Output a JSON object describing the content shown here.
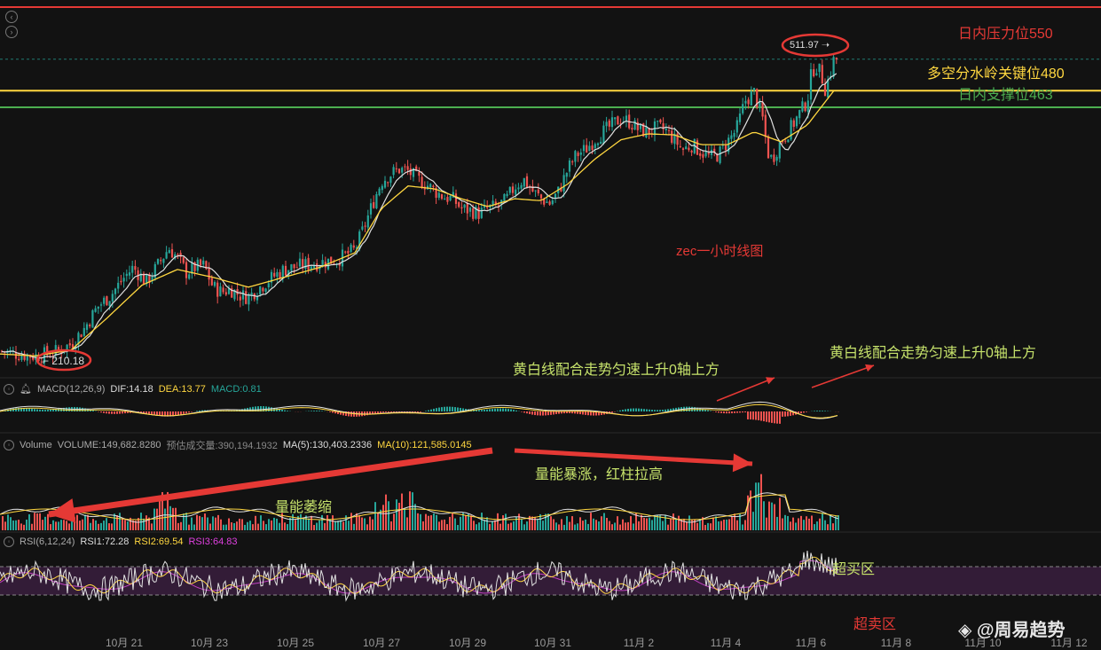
{
  "chart_data": {
    "type": "candlestick",
    "title": "zec一小时线图",
    "x_dates": [
      "10月 21",
      "10月 23",
      "10月 25",
      "10月 27",
      "10月 29",
      "10月 31",
      "11月 2",
      "11月 4",
      "11月 6",
      "11月 8",
      "11月 10",
      "11月 12"
    ],
    "price_path": [
      [
        0,
        215
      ],
      [
        20,
        212
      ],
      [
        40,
        210
      ],
      [
        60,
        213
      ],
      [
        80,
        222
      ],
      [
        95,
        238
      ],
      [
        110,
        260
      ],
      [
        125,
        272
      ],
      [
        140,
        290
      ],
      [
        150,
        300
      ],
      [
        165,
        285
      ],
      [
        180,
        305
      ],
      [
        190,
        320
      ],
      [
        200,
        310
      ],
      [
        210,
        295
      ],
      [
        220,
        300
      ],
      [
        230,
        302
      ],
      [
        240,
        280
      ],
      [
        250,
        275
      ],
      [
        260,
        278
      ],
      [
        270,
        272
      ],
      [
        280,
        270
      ],
      [
        290,
        278
      ],
      [
        300,
        285
      ],
      [
        310,
        292
      ],
      [
        320,
        298
      ],
      [
        330,
        300
      ],
      [
        340,
        302
      ],
      [
        360,
        305
      ],
      [
        380,
        308
      ],
      [
        400,
        318
      ],
      [
        410,
        340
      ],
      [
        420,
        365
      ],
      [
        430,
        388
      ],
      [
        440,
        395
      ],
      [
        450,
        400
      ],
      [
        460,
        398
      ],
      [
        470,
        390
      ],
      [
        480,
        385
      ],
      [
        490,
        378
      ],
      [
        500,
        372
      ],
      [
        510,
        370
      ],
      [
        520,
        360
      ],
      [
        530,
        358
      ],
      [
        540,
        355
      ],
      [
        550,
        360
      ],
      [
        560,
        362
      ],
      [
        570,
        368
      ],
      [
        580,
        382
      ],
      [
        590,
        390
      ],
      [
        600,
        378
      ],
      [
        610,
        370
      ],
      [
        620,
        365
      ],
      [
        630,
        378
      ],
      [
        640,
        400
      ],
      [
        650,
        415
      ],
      [
        660,
        420
      ],
      [
        670,
        430
      ],
      [
        680,
        438
      ],
      [
        690,
        445
      ],
      [
        700,
        452
      ],
      [
        710,
        448
      ],
      [
        720,
        440
      ],
      [
        730,
        438
      ],
      [
        740,
        442
      ],
      [
        750,
        440
      ],
      [
        760,
        430
      ],
      [
        770,
        420
      ],
      [
        780,
        425
      ],
      [
        790,
        418
      ],
      [
        800,
        412
      ],
      [
        810,
        415
      ],
      [
        820,
        428
      ],
      [
        830,
        440
      ],
      [
        840,
        470
      ],
      [
        850,
        478
      ],
      [
        860,
        450
      ],
      [
        865,
        418
      ],
      [
        870,
        410
      ],
      [
        880,
        428
      ],
      [
        890,
        440
      ],
      [
        900,
        455
      ],
      [
        910,
        470
      ],
      [
        915,
        500
      ],
      [
        920,
        505
      ],
      [
        925,
        498
      ],
      [
        930,
        482
      ],
      [
        935,
        495
      ],
      [
        940,
        512
      ]
    ],
    "ma_slow_path": [
      [
        0,
        212
      ],
      [
        40,
        210
      ],
      [
        80,
        216
      ],
      [
        120,
        248
      ],
      [
        160,
        282
      ],
      [
        200,
        298
      ],
      [
        240,
        290
      ],
      [
        280,
        280
      ],
      [
        320,
        290
      ],
      [
        360,
        300
      ],
      [
        400,
        315
      ],
      [
        430,
        360
      ],
      [
        460,
        383
      ],
      [
        490,
        380
      ],
      [
        520,
        370
      ],
      [
        550,
        362
      ],
      [
        580,
        370
      ],
      [
        610,
        368
      ],
      [
        640,
        385
      ],
      [
        670,
        410
      ],
      [
        700,
        430
      ],
      [
        730,
        436
      ],
      [
        760,
        435
      ],
      [
        790,
        425
      ],
      [
        820,
        425
      ],
      [
        850,
        438
      ],
      [
        880,
        428
      ],
      [
        910,
        445
      ],
      [
        940,
        480
      ]
    ],
    "price_last": "511.97",
    "price_low_label": "210.18",
    "y_range": [
      195,
      565
    ],
    "levels": [
      {
        "name": "日内压力位550",
        "value": 550,
        "color": "#e53935"
      },
      {
        "name": "多空分水岭关键位480",
        "value": 480,
        "color": "#ffd740"
      },
      {
        "name": "日内支撑位463",
        "value": 463,
        "color": "#4caf50"
      }
    ],
    "macd": {
      "label": "MACD(12,26,9)",
      "dif": "DIF:14.18",
      "dea": "DEA:13.77",
      "macd": "MACD:0.81"
    },
    "volume": {
      "label": "Volume",
      "volume": "VOLUME:149,682.8280",
      "est": "预估成交量:390,194.1932",
      "ma5": "MA(5):130,403.2336",
      "ma10": "MA(10):121,585.0145"
    },
    "rsi": {
      "label": "RSI(6,12,24)",
      "rsi1": "RSI1:72.28",
      "rsi2": "RSI2:69.54",
      "rsi3": "RSI3:64.83",
      "upper": 70,
      "lower": 30
    }
  },
  "annotations": {
    "chart_title": "zec一小时线图",
    "macd_note1": "黄白线配合走势匀速上升0轴上方",
    "macd_note2": "黄白线配合走势匀速上升0轴上方",
    "vol_shrink": "量能萎缩",
    "vol_surge": "量能暴涨，红柱拉高",
    "overbought": "超买区",
    "oversold": "超卖区",
    "watermark": "@周易趋势"
  },
  "colors": {
    "up": "#26a69a",
    "down": "#ef5350",
    "ma_white": "#e0e0e0",
    "ma_yellow": "#ffd740",
    "rsi_purple": "#c040c0",
    "rsi_band": "#3a1e3e"
  }
}
